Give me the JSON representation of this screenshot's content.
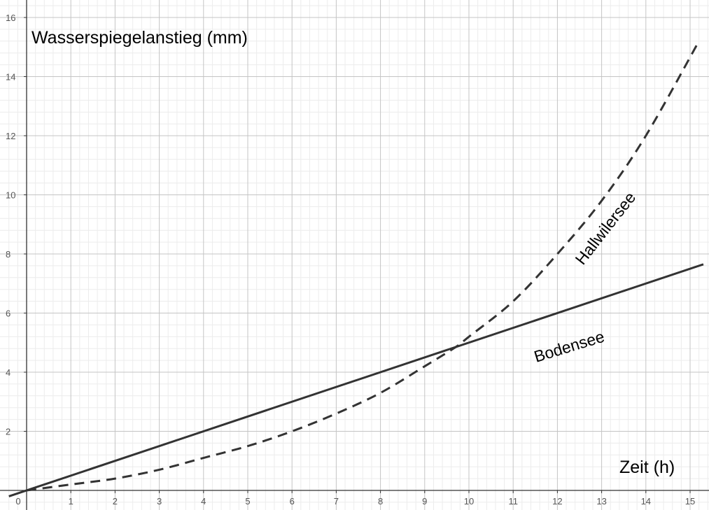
{
  "chart_data": {
    "type": "line",
    "xlabel": "Zeit (h)",
    "ylabel": "Wasserspiegelanstieg (mm)",
    "xlim": [
      -0.4,
      15.3
    ],
    "ylim": [
      -0.6,
      16.3
    ],
    "x_ticks": [
      0,
      1,
      2,
      3,
      4,
      5,
      6,
      7,
      8,
      9,
      10,
      11,
      12,
      13,
      14,
      15
    ],
    "y_ticks": [
      2,
      4,
      6,
      8,
      10,
      12,
      14,
      16
    ],
    "grid": true,
    "series": [
      {
        "name": "Bodensee",
        "style": "solid",
        "color": "#333333",
        "x": [
          -0.4,
          15.3
        ],
        "y": [
          -0.2,
          7.65
        ]
      },
      {
        "name": "Hallwilersee",
        "style": "dashed",
        "color": "#333333",
        "x": [
          0,
          1,
          2,
          3,
          4,
          5,
          6,
          7,
          8,
          9,
          9.7,
          10,
          11,
          12,
          13,
          14,
          15.2
        ],
        "y": [
          0,
          0.2,
          0.4,
          0.7,
          1.1,
          1.5,
          2.0,
          2.6,
          3.3,
          4.2,
          4.85,
          5.2,
          6.4,
          8.0,
          9.8,
          12.0,
          15.2
        ]
      }
    ],
    "labels": {
      "bodensee": "Bodensee",
      "hallwilersee": "Hallwilersee"
    }
  }
}
